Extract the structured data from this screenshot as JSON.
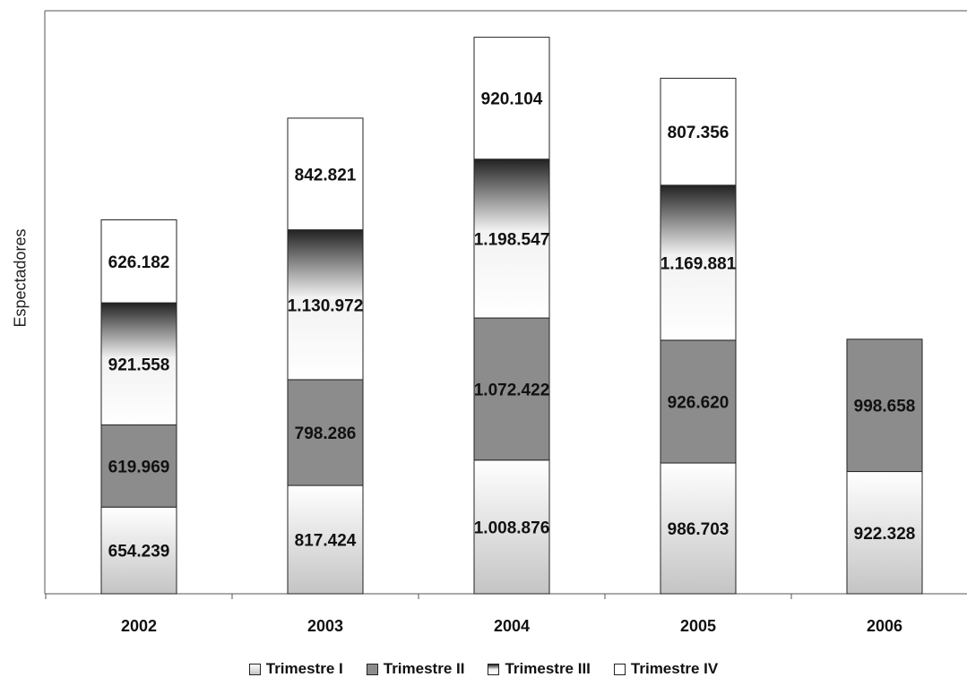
{
  "chart_data": {
    "type": "bar",
    "stacked": true,
    "categories": [
      "2002",
      "2003",
      "2004",
      "2005",
      "2006"
    ],
    "ylabel": "Espectadores",
    "xlabel": "",
    "ylim": [
      0,
      4400000
    ],
    "grid": false,
    "legend_position": "bottom",
    "series": [
      {
        "name": "Trimestre I",
        "values": [
          654239,
          817424,
          1008876,
          986703,
          922328
        ],
        "labels": [
          "654.239",
          "817.424",
          "1.008.876",
          "986.703",
          "922.328"
        ]
      },
      {
        "name": "Trimestre II",
        "values": [
          619969,
          798286,
          1072422,
          926620,
          998658
        ],
        "labels": [
          "619.969",
          "798.286",
          "1.072.422",
          "926.620",
          "998.658"
        ]
      },
      {
        "name": "Trimestre III",
        "values": [
          921558,
          1130972,
          1198547,
          1169881,
          null
        ],
        "labels": [
          "921.558",
          "1.130.972",
          "1.198.547",
          "1.169.881",
          ""
        ]
      },
      {
        "name": "Trimestre IV",
        "values": [
          626182,
          842821,
          920104,
          807356,
          null
        ],
        "labels": [
          "626.182",
          "842.821",
          "920.104",
          "807.356",
          ""
        ]
      }
    ]
  },
  "colors": {
    "axis": "#555555",
    "bar_outline": "#222222",
    "trimestre_ii": "#8c8c8c",
    "trimestre_iii_dark": "#222222",
    "trimestre_iii_light": "#ffffff",
    "trimestre_i_light": "#ffffff",
    "trimestre_i_dark": "#c4c4c4",
    "trimestre_iv": "#ffffff"
  }
}
